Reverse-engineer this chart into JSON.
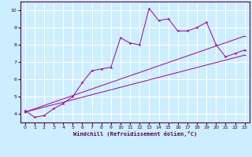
{
  "xlabel": "Windchill (Refroidissement éolien,°C)",
  "bg_color": "#cceeff",
  "line_color": "#990099",
  "grid_color": "#ffffff",
  "xlim": [
    -0.5,
    23.5
  ],
  "ylim": [
    3.5,
    10.5
  ],
  "xticks": [
    0,
    1,
    2,
    3,
    4,
    5,
    6,
    7,
    8,
    9,
    10,
    11,
    12,
    13,
    14,
    15,
    16,
    17,
    18,
    19,
    20,
    21,
    22,
    23
  ],
  "yticks": [
    4,
    5,
    6,
    7,
    8,
    9,
    10
  ],
  "line1_x": [
    0,
    1,
    2,
    3,
    4,
    5,
    6,
    7,
    8,
    9,
    10,
    11,
    12,
    13,
    14,
    15,
    16,
    17,
    18,
    19,
    20,
    21,
    22,
    23
  ],
  "line1_y": [
    4.2,
    3.8,
    3.9,
    4.3,
    4.6,
    5.0,
    5.8,
    6.5,
    6.6,
    6.7,
    8.4,
    8.1,
    8.0,
    10.1,
    9.4,
    9.5,
    8.8,
    8.8,
    9.0,
    9.3,
    8.0,
    7.3,
    7.5,
    7.7
  ],
  "line2_x": [
    0,
    23
  ],
  "line2_y": [
    4.1,
    8.5
  ],
  "line3_x": [
    0,
    23
  ],
  "line3_y": [
    4.1,
    7.4
  ]
}
